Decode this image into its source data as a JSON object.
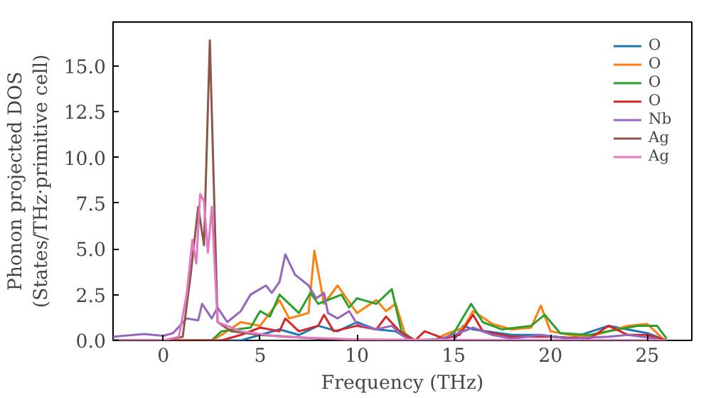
{
  "chart_data": {
    "type": "line",
    "xlabel": "Frequency (THz)",
    "ylabel": "Phonon projected DOS\n(States/THz·primitive cell)",
    "xlim": [
      -2.6,
      27.3
    ],
    "ylim": [
      0,
      17.4
    ],
    "xticks": [
      0,
      5,
      10,
      15,
      20,
      25
    ],
    "yticks": [
      {
        "value": 0,
        "label": "0.0"
      },
      2.5,
      {
        "value": 5,
        "label": "5.0"
      },
      7.5,
      {
        "value": 10,
        "label": "10.0"
      },
      12.5,
      {
        "value": 15,
        "label": "15.0"
      }
    ],
    "legend": "top right",
    "grid": false,
    "series": [
      {
        "name": "O",
        "color": "#1f77b4",
        "x": [
          -2.6,
          4,
          5,
          6,
          7,
          8,
          9,
          10,
          11,
          12,
          12.8,
          15,
          15.5,
          16,
          18,
          19.5,
          21,
          23,
          25,
          26
        ],
        "values": [
          0,
          0,
          0.3,
          0.6,
          0.3,
          0.8,
          0.5,
          1.0,
          0.6,
          0.5,
          0,
          0,
          0.8,
          0.6,
          0.3,
          0.3,
          0.1,
          0.8,
          0.4,
          0
        ]
      },
      {
        "name": "O",
        "color": "#ff7f0e",
        "x": [
          -2.6,
          2.5,
          3,
          4,
          5,
          5.5,
          6,
          6.5,
          7.5,
          7.8,
          8.3,
          9,
          10,
          11,
          11.5,
          12,
          12.5,
          13,
          14,
          14.5,
          15.5,
          16,
          17,
          18,
          19,
          19.5,
          20,
          21,
          22,
          23,
          24,
          25,
          25.8
        ],
        "values": [
          0,
          0,
          0.3,
          1.0,
          0.8,
          1.5,
          2.2,
          1.2,
          1.5,
          4.9,
          2.0,
          3.0,
          1.5,
          2.2,
          1.6,
          2.0,
          0.3,
          0,
          0,
          0.3,
          0.7,
          1.6,
          0.9,
          0.6,
          0.7,
          1.9,
          0.5,
          0.3,
          0.2,
          0.5,
          0.8,
          0.9,
          0.1
        ]
      },
      {
        "name": "O",
        "color": "#2ca02c",
        "x": [
          -2.6,
          2.5,
          3,
          4.5,
          5,
          5.5,
          6,
          7,
          7.6,
          8,
          9.2,
          9.6,
          10,
          11,
          11.8,
          12.3,
          13,
          14.5,
          15,
          15.9,
          16.5,
          17.5,
          19,
          19.7,
          20.5,
          22,
          23.5,
          24.5,
          25.5,
          26
        ],
        "values": [
          0,
          0,
          0.5,
          0.7,
          1.6,
          1.3,
          2.5,
          1.5,
          2.6,
          2.0,
          2.5,
          1.8,
          2.3,
          2.0,
          2.8,
          0.5,
          0,
          0.1,
          0.4,
          2.0,
          1.0,
          0.6,
          0.8,
          1.4,
          0.4,
          0.3,
          0.6,
          0.8,
          0.8,
          0.1
        ]
      },
      {
        "name": "O",
        "color": "#d62728",
        "x": [
          -2.6,
          3,
          4,
          5,
          6,
          6.3,
          7,
          8,
          8.3,
          8.8,
          10,
          11,
          11.5,
          12.3,
          13,
          13.5,
          14.5,
          15.3,
          16,
          16.5,
          18,
          20,
          22,
          23,
          24,
          25,
          26
        ],
        "values": [
          0,
          0,
          0.3,
          0.7,
          0.5,
          1.2,
          0.5,
          0.8,
          1.4,
          0.5,
          0.8,
          0.6,
          1.3,
          0.4,
          0,
          0.5,
          0.1,
          0.3,
          1.4,
          0.5,
          0.2,
          0.2,
          0.1,
          0.8,
          0.3,
          0.3,
          0
        ]
      },
      {
        "name": "Nb",
        "color": "#9467bd",
        "x": [
          -2.6,
          -1,
          0,
          0.5,
          1.2,
          1.8,
          2.0,
          2.5,
          2.8,
          3.3,
          4,
          4.5,
          5.3,
          5.6,
          6.0,
          6.3,
          6.8,
          7.5,
          7.9,
          8.3,
          8.5,
          9,
          9.6,
          10,
          11,
          11.8,
          12.3,
          12.8,
          14,
          15,
          16,
          17,
          18,
          19.5,
          21,
          23,
          24,
          25.5
        ],
        "values": [
          0.2,
          0.35,
          0.25,
          0.4,
          1.2,
          1.1,
          2.0,
          1.2,
          1.8,
          1.0,
          1.6,
          2.5,
          3.0,
          2.6,
          3.2,
          4.7,
          3.6,
          3.0,
          2.3,
          2.6,
          1.5,
          1.2,
          1.6,
          0.9,
          0.6,
          0.8,
          0.3,
          0,
          0,
          0.3,
          0.7,
          0.3,
          0.1,
          0.3,
          0.1,
          0.2,
          0.3,
          0.1
        ]
      },
      {
        "name": "Ag",
        "color": "#8c564b",
        "x": [
          -2.6,
          0,
          1,
          1.4,
          1.8,
          2.1,
          2.4,
          2.8,
          3.5,
          5,
          8,
          12,
          26
        ],
        "values": [
          0,
          0,
          0.2,
          3.5,
          7.3,
          5.2,
          16.4,
          1.0,
          0.5,
          0.3,
          0.1,
          0,
          0
        ]
      },
      {
        "name": "Ag",
        "color": "#e377c2",
        "x": [
          -2.6,
          0,
          0.8,
          1.2,
          1.5,
          1.7,
          1.9,
          2.1,
          2.3,
          2.5,
          2.8,
          4,
          6,
          10,
          26
        ],
        "values": [
          0,
          0,
          0.2,
          2.5,
          5.5,
          4.2,
          8.0,
          7.6,
          4.8,
          7.3,
          1.0,
          0.5,
          0.2,
          0.05,
          0
        ]
      }
    ]
  }
}
